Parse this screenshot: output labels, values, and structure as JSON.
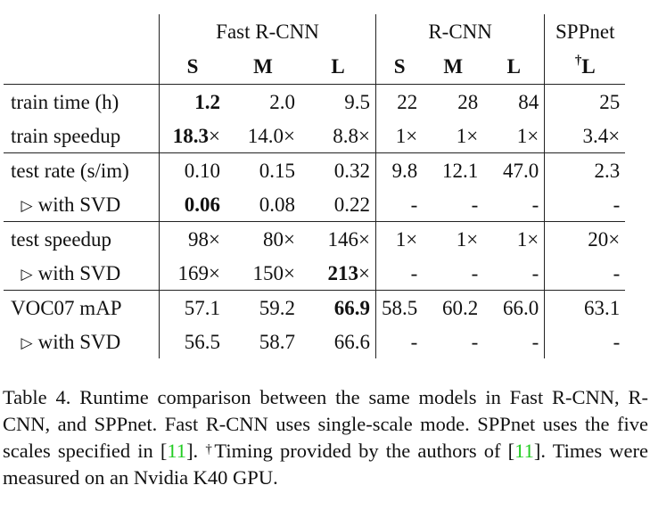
{
  "table": {
    "group_headers": [
      "Fast R-CNN",
      "R-CNN",
      "SPPnet"
    ],
    "col_headers": [
      "S",
      "M",
      "L",
      "S",
      "M",
      "L",
      "†L"
    ],
    "rows": [
      {
        "label": "train time (h)",
        "cells": [
          "1.2",
          "2.0",
          "9.5",
          "22",
          "28",
          "84",
          "25"
        ]
      },
      {
        "label": "train speedup",
        "cells": [
          "18.3×",
          "14.0×",
          "8.8×",
          "1×",
          "1×",
          "1×",
          "3.4×"
        ]
      },
      {
        "label": "test rate (s/im)",
        "cells": [
          "0.10",
          "0.15",
          "0.32",
          "9.8",
          "12.1",
          "47.0",
          "2.3"
        ]
      },
      {
        "label": "with SVD",
        "cells": [
          "0.06",
          "0.08",
          "0.22",
          "-",
          "-",
          "-",
          "-"
        ]
      },
      {
        "label": "test speedup",
        "cells": [
          "98×",
          "80×",
          "146×",
          "1×",
          "1×",
          "1×",
          "20×"
        ]
      },
      {
        "label": "with SVD",
        "cells": [
          "169×",
          "150×",
          "213×",
          "-",
          "-",
          "-",
          "-"
        ]
      },
      {
        "label": "VOC07 mAP",
        "cells": [
          "57.1",
          "59.2",
          "66.9",
          "58.5",
          "60.2",
          "66.0",
          "63.1"
        ]
      },
      {
        "label": "with SVD",
        "cells": [
          "56.5",
          "58.7",
          "66.6",
          "-",
          "-",
          "-",
          "-"
        ]
      }
    ],
    "bold_cells": [
      [
        0,
        0
      ],
      [
        1,
        0
      ],
      [
        3,
        0
      ],
      [
        5,
        2
      ],
      [
        6,
        2
      ]
    ],
    "sub_row_marker": "▷"
  },
  "caption": {
    "part1": "Table 4. Runtime comparison between the same models in Fast R-CNN, R-CNN, and SPPnet. Fast R-CNN uses single-scale mode. SPPnet uses the five scales specified in [",
    "cite1": "11",
    "part2": "]. ",
    "dagger": "†",
    "part3": "Timing provided by the authors of [",
    "cite2": "11",
    "part4": "]. Times were measured on an Nvidia K40 GPU.",
    "cite_color": "#22cc22"
  }
}
